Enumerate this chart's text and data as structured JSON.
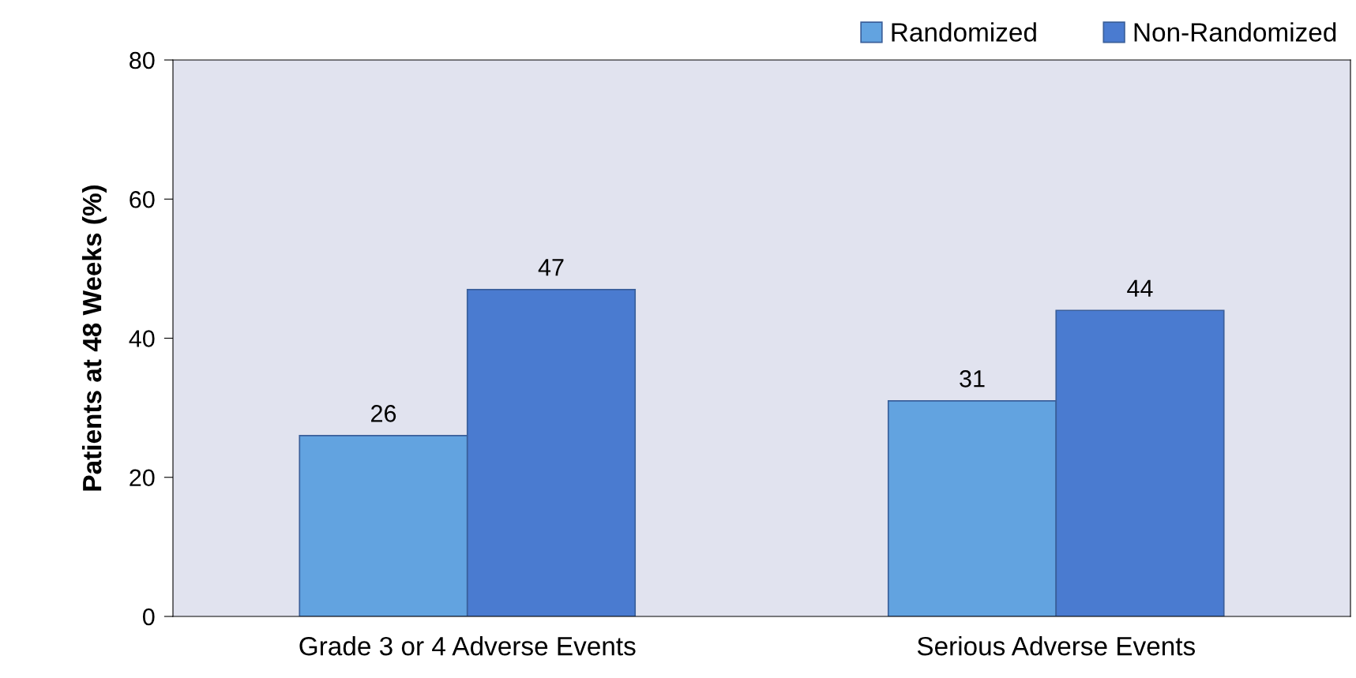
{
  "chart_data": {
    "type": "bar",
    "ylabel": "Patients at 48 Weeks (%)",
    "categories": [
      "Grade 3 or 4 Adverse Events",
      "Serious Adverse Events"
    ],
    "series": [
      {
        "name": "Randomized",
        "color": "#62a3e0",
        "values": [
          26,
          31
        ]
      },
      {
        "name": "Non-Randomized",
        "color": "#4a7bd0",
        "values": [
          47,
          44
        ]
      }
    ],
    "ylim": [
      0,
      80
    ],
    "yticks": [
      0,
      20,
      40,
      60,
      80
    ],
    "data_labels": true,
    "legend": "top right",
    "grid": false
  }
}
